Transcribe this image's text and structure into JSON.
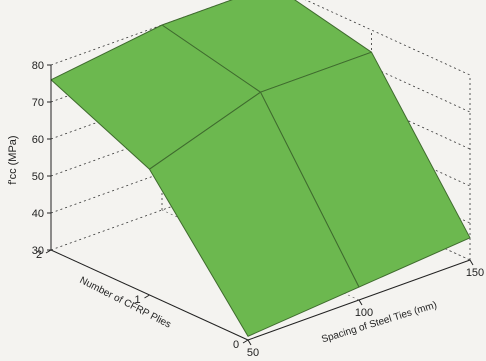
{
  "chart_data": {
    "type": "surface",
    "x": {
      "label": "Spacing of Steel Ties (mm)",
      "ticks": [
        "50",
        "100",
        "150"
      ],
      "values": [
        50,
        100,
        150
      ]
    },
    "y": {
      "label": "Number of CFRP Plies",
      "ticks": [
        "0",
        "1",
        "2"
      ],
      "values": [
        0,
        1,
        2
      ]
    },
    "z": {
      "label": "f'cc (MPa)",
      "ticks": [
        "30",
        "40",
        "50",
        "60",
        "70",
        "80"
      ],
      "range": [
        30,
        80
      ]
    },
    "z_grid": [
      [
        31,
        33.5,
        36
      ],
      [
        64,
        74,
        74
      ],
      [
        76,
        80,
        80
      ]
    ],
    "surface_color": "#6cb84f",
    "edge_color": "#3f6b2e",
    "grid": true
  }
}
